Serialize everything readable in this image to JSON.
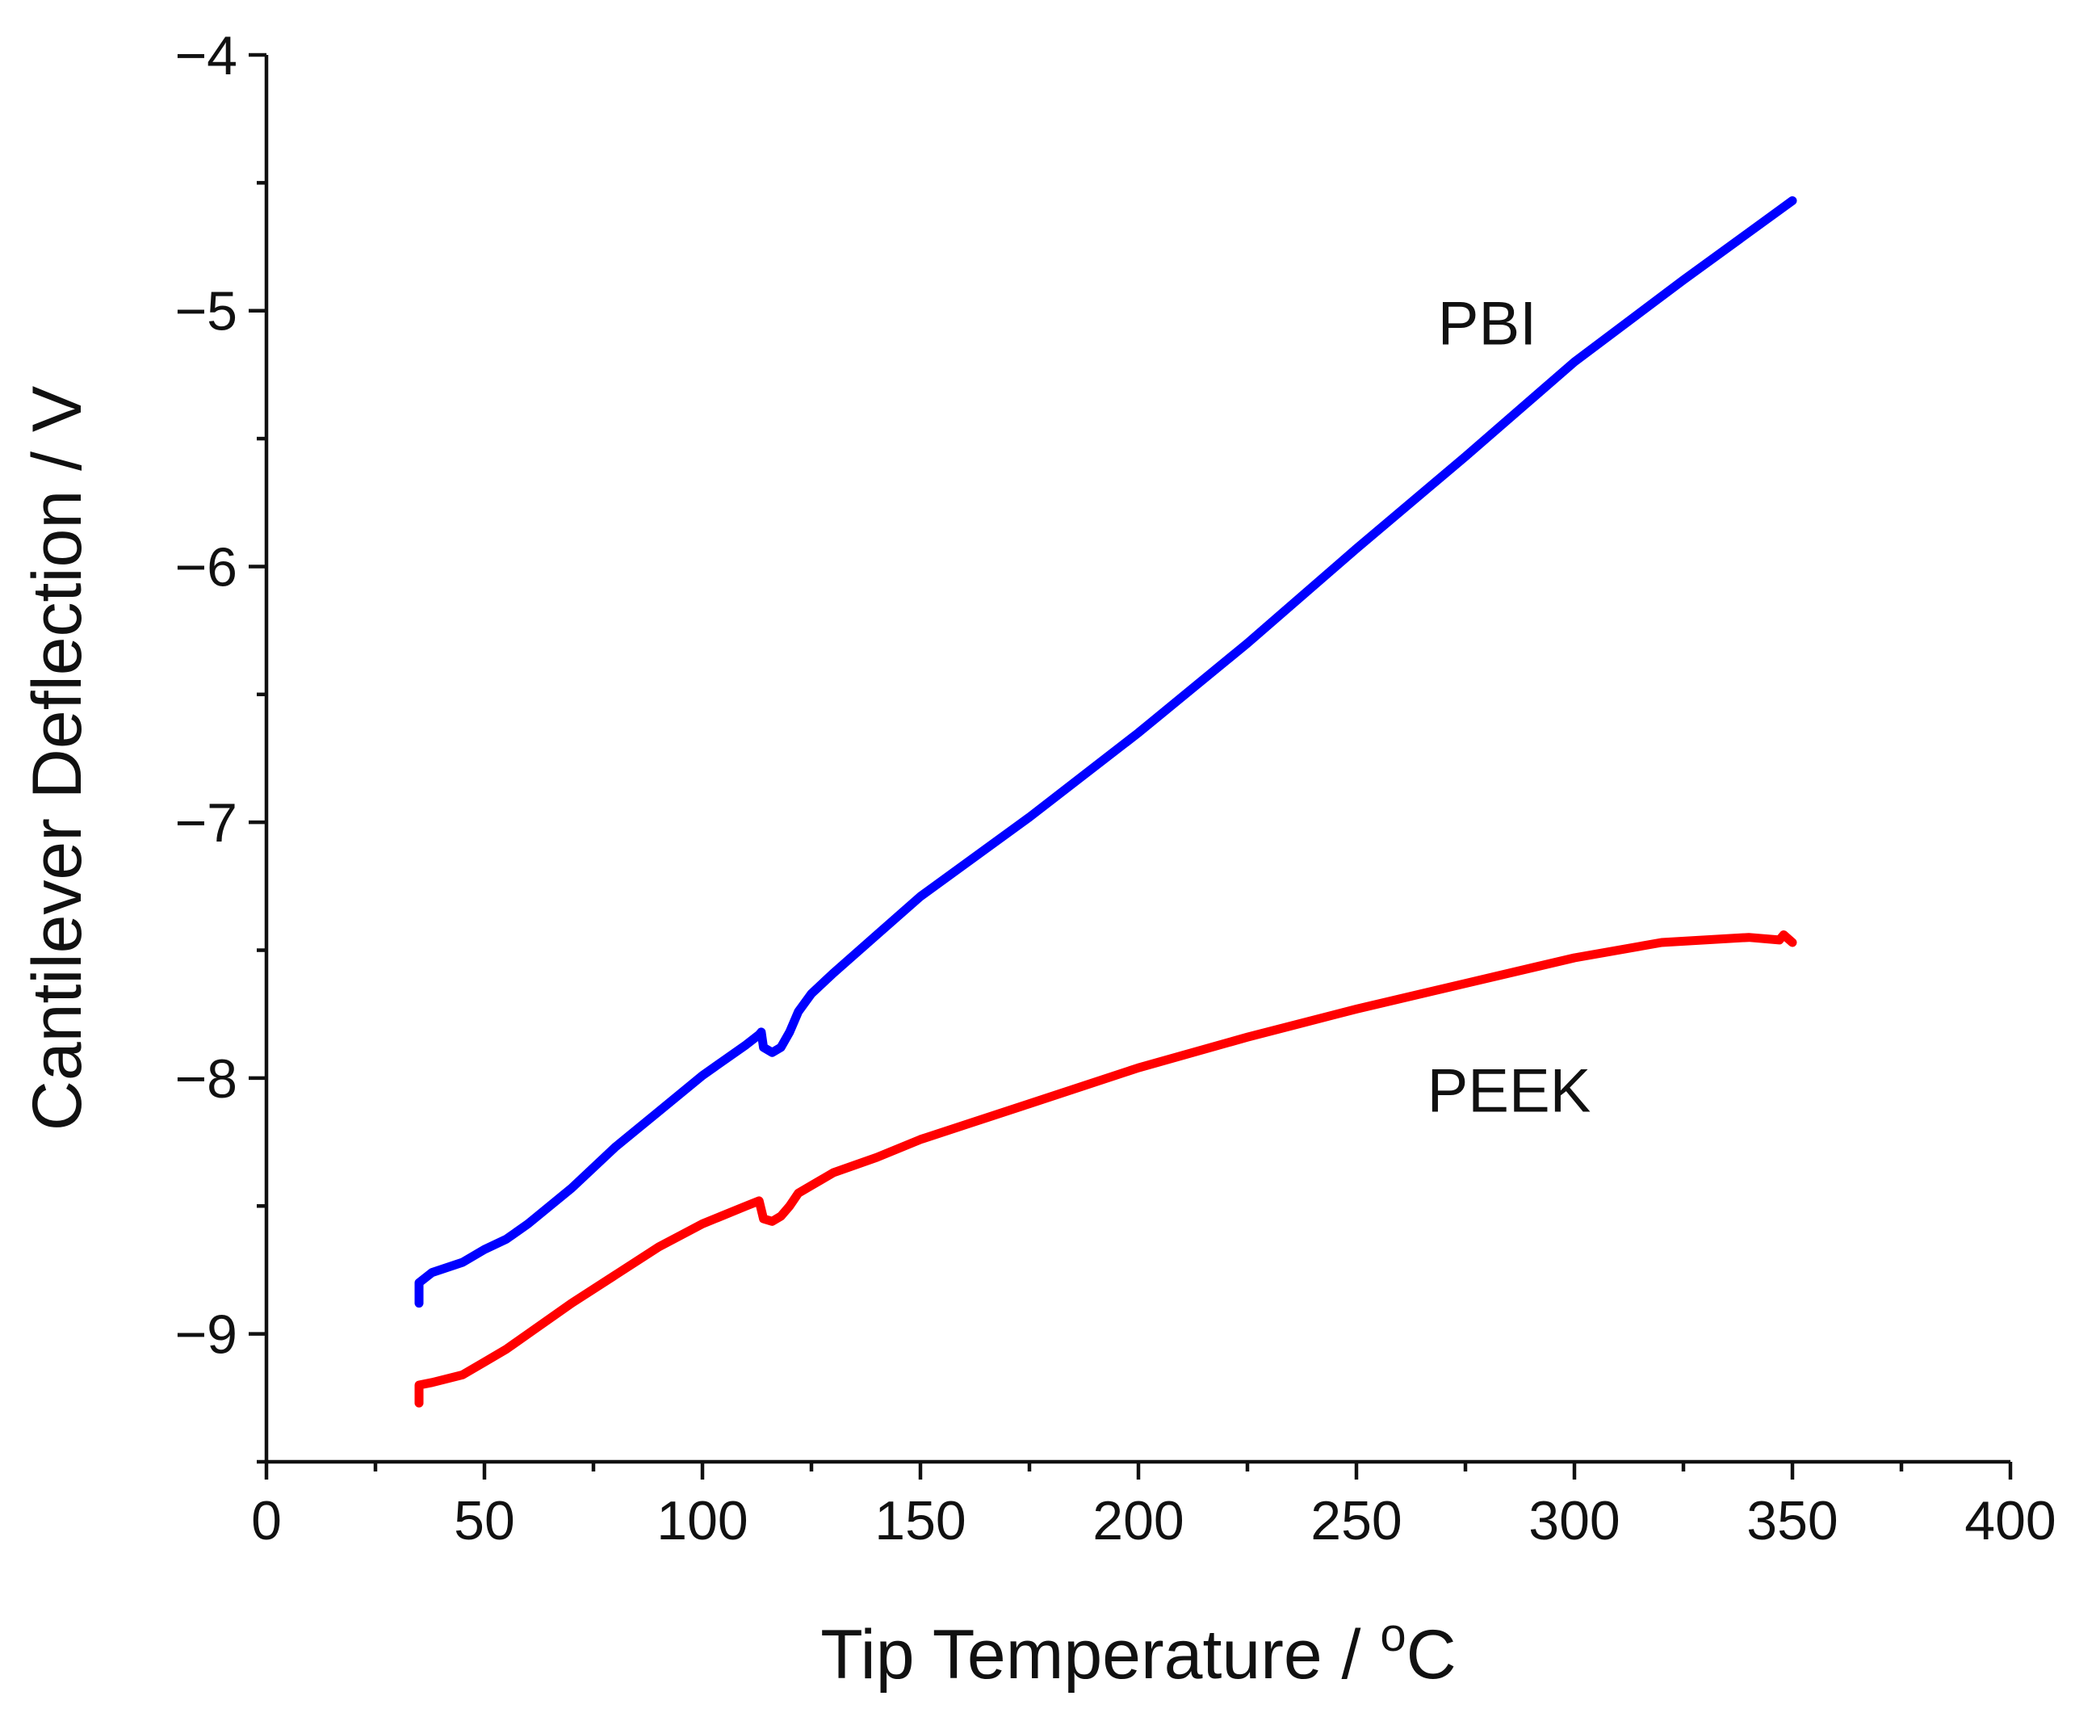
{
  "chart_data": {
    "type": "line",
    "title": "",
    "xlabel": "Tip Temperature / ",
    "xlabel_unit_sup": "o",
    "xlabel_unit": "C",
    "ylabel": "Cantilever Deflection / V",
    "xlim": [
      0,
      400
    ],
    "ylim": [
      -9.5,
      -4
    ],
    "x_ticks": [
      0,
      50,
      100,
      150,
      200,
      250,
      300,
      350,
      400
    ],
    "x_tick_labels": [
      "0",
      "50",
      "100",
      "150",
      "200",
      "250",
      "300",
      "350",
      "400"
    ],
    "y_ticks": [
      -9,
      -8,
      -7,
      -6,
      -5,
      -4
    ],
    "y_tick_labels": [
      "−9",
      "−8",
      "−7",
      "−6",
      "−5",
      "−4"
    ],
    "x_minor_step": 25,
    "y_minor_step": 0.5,
    "grid": false,
    "series": [
      {
        "name": "PBI",
        "color": "#0000ff",
        "label_at": [
          280,
          -5.05
        ],
        "x": [
          35,
          35,
          38,
          45,
          50,
          55,
          60,
          65,
          70,
          80,
          90,
          100,
          110,
          113,
          113.5,
          114,
          116,
          118,
          120,
          122,
          125,
          130,
          140,
          150,
          175,
          200,
          225,
          250,
          275,
          300,
          325,
          350
        ],
        "y": [
          -8.88,
          -8.8,
          -8.76,
          -8.72,
          -8.67,
          -8.63,
          -8.57,
          -8.5,
          -8.43,
          -8.27,
          -8.13,
          -7.99,
          -7.87,
          -7.83,
          -7.82,
          -7.88,
          -7.9,
          -7.88,
          -7.82,
          -7.74,
          -7.67,
          -7.59,
          -7.44,
          -7.29,
          -6.98,
          -6.65,
          -6.3,
          -5.93,
          -5.57,
          -5.2,
          -4.88,
          -4.57
        ]
      },
      {
        "name": "PEEK",
        "color": "#ff0000",
        "label_at": [
          285,
          -8.05
        ],
        "x": [
          35,
          35,
          38,
          45,
          50,
          55,
          60,
          65,
          70,
          80,
          90,
          100,
          110,
          113,
          114,
          116,
          118,
          120,
          122,
          125,
          130,
          140,
          150,
          175,
          200,
          225,
          250,
          275,
          300,
          320,
          340,
          347,
          348,
          350
        ],
        "y": [
          -9.27,
          -9.2,
          -9.19,
          -9.16,
          -9.11,
          -9.06,
          -9.0,
          -8.94,
          -8.88,
          -8.77,
          -8.66,
          -8.57,
          -8.5,
          -8.48,
          -8.55,
          -8.56,
          -8.54,
          -8.5,
          -8.45,
          -8.42,
          -8.37,
          -8.31,
          -8.24,
          -8.1,
          -7.96,
          -7.84,
          -7.73,
          -7.63,
          -7.53,
          -7.47,
          -7.45,
          -7.46,
          -7.44,
          -7.47
        ]
      }
    ]
  }
}
